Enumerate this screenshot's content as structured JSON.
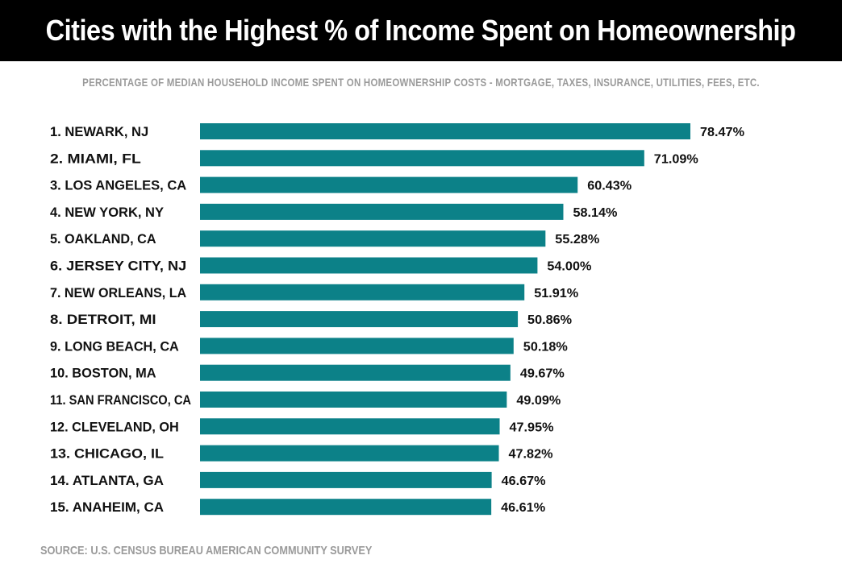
{
  "header": {
    "title": "Cities with the Highest % of Income Spent on Homeownership",
    "subtitle": "PERCENTAGE OF MEDIAN HOUSEHOLD INCOME SPENT ON HOMEOWNERSHIP COSTS - MORTGAGE, TAXES, INSURANCE, UTILITIES, FEES, ETC."
  },
  "footer": {
    "source": "SOURCE: U.S. CENSUS BUREAU AMERICAN COMMUNITY SURVEY"
  },
  "colors": {
    "bar": "#0c8188",
    "title_bg": "#000000",
    "title_text": "#ffffff",
    "muted_text": "#9a9a9a",
    "label_text": "#111111"
  },
  "chart_data": {
    "type": "bar",
    "orientation": "horizontal",
    "title": "Cities with the Highest % of Income Spent on Homeownership",
    "subtitle": "PERCENTAGE OF MEDIAN HOUSEHOLD INCOME SPENT ON HOMEOWNERSHIP COSTS - MORTGAGE, TAXES, INSURANCE, UTILITIES, FEES, ETC.",
    "xlabel": "",
    "ylabel": "",
    "categories": [
      "1. NEWARK, NJ",
      "2. MIAMI, FL",
      "3. LOS ANGELES, CA",
      "4. NEW YORK, NY",
      "5. OAKLAND, CA",
      "6. JERSEY CITY, NJ",
      "7. NEW ORLEANS, LA",
      "8. DETROIT, MI",
      "9. LONG BEACH, CA",
      "10. BOSTON, MA",
      "11. SAN FRANCISCO, CA",
      "12. CLEVELAND, OH",
      "13. CHICAGO, IL",
      "14. ATLANTA, GA",
      "15. ANAHEIM, CA"
    ],
    "values": [
      78.47,
      71.09,
      60.43,
      58.14,
      55.28,
      54.0,
      51.91,
      50.86,
      50.18,
      49.67,
      49.09,
      47.95,
      47.82,
      46.67,
      46.61
    ],
    "value_labels": [
      "78.47%",
      "71.09%",
      "60.43%",
      "58.14%",
      "55.28%",
      "54.00%",
      "51.91%",
      "50.86%",
      "50.18%",
      "49.67%",
      "49.09%",
      "47.95%",
      "47.82%",
      "46.67%",
      "46.61%"
    ],
    "xlim": [
      0,
      78.47
    ],
    "grid": false,
    "legend": "none",
    "source": "SOURCE: U.S. CENSUS BUREAU AMERICAN COMMUNITY SURVEY"
  }
}
